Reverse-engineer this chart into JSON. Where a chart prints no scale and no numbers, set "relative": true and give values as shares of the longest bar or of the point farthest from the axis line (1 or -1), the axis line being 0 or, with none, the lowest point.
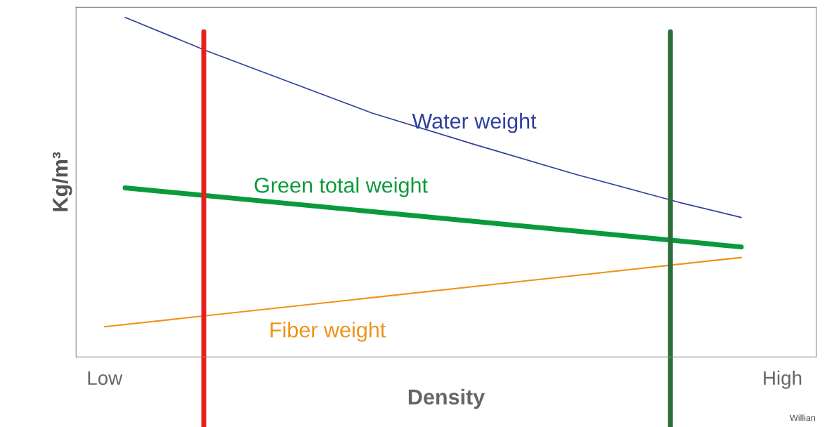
{
  "chart_data": {
    "type": "line",
    "relative": true,
    "xlabel": "Density",
    "ylabel": "Kg/m³",
    "categories": [
      "Low",
      null,
      null,
      null,
      null,
      null,
      null,
      null,
      null,
      null,
      null,
      null,
      null,
      null,
      null,
      null,
      null,
      null,
      null,
      null,
      null,
      null,
      null,
      null,
      null,
      null,
      null,
      null,
      null,
      null,
      null,
      null,
      null,
      "High"
    ],
    "series": [
      {
        "name": "Water weight",
        "color": "#2e3f9e",
        "values": [
          null,
          1.0,
          null,
          null,
          null,
          0.901,
          null,
          null,
          null,
          0.81,
          null,
          null,
          null,
          0.719,
          null,
          null,
          null,
          null,
          0.626,
          null,
          null,
          null,
          null,
          0.537,
          null,
          null,
          null,
          null,
          0.455,
          null,
          null,
          0.411,
          null,
          null
        ]
      },
      {
        "name": "Green total weight",
        "color": "#0a9a3c",
        "values": [
          null,
          0.498,
          null,
          null,
          null,
          null,
          null,
          null,
          null,
          null,
          null,
          null,
          null,
          null,
          null,
          null,
          null,
          null,
          null,
          null,
          null,
          null,
          null,
          null,
          null,
          null,
          null,
          null,
          null,
          null,
          null,
          0.324,
          null,
          null
        ]
      },
      {
        "name": "Fiber weight",
        "color": "#f0921a",
        "values": [
          0.089,
          null,
          null,
          null,
          null,
          null,
          null,
          null,
          null,
          null,
          null,
          null,
          null,
          null,
          null,
          null,
          null,
          null,
          null,
          null,
          null,
          null,
          null,
          null,
          null,
          null,
          null,
          null,
          null,
          null,
          null,
          0.293,
          null,
          null
        ]
      }
    ],
    "grid": false,
    "legend": false,
    "annotations": [
      "Willian"
    ]
  }
}
